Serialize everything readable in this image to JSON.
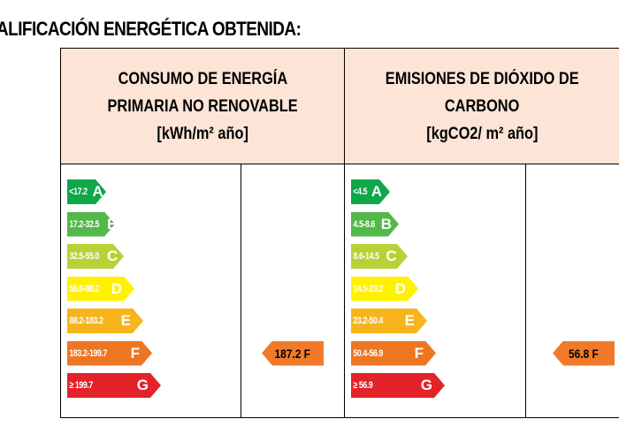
{
  "title": "ALIFICACIÓN ENERGÉTICA OBTENIDA:",
  "columns": [
    {
      "header_line1": "CONSUMO DE ENERGÍA",
      "header_line2": "PRIMARIA NO RENOVABLE",
      "unit": "[kWh/m² año]",
      "bands": [
        {
          "range": "<17.2",
          "letter": "A"
        },
        {
          "range": "17.2-32.5",
          "letter": "B"
        },
        {
          "range": "32.5-55.0",
          "letter": "C"
        },
        {
          "range": "55.0-88.2",
          "letter": "D"
        },
        {
          "range": "88.2-183.2",
          "letter": "E"
        },
        {
          "range": "183.2-199.7",
          "letter": "F"
        },
        {
          "range": "≥ 199.7",
          "letter": "G"
        }
      ],
      "result": {
        "label": "187.2 F",
        "band_index": 5
      }
    },
    {
      "header_line1": "EMISIONES DE DIÓXIDO DE",
      "header_line2": "CARBONO",
      "unit": "[kgCO2/ m² año]",
      "bands": [
        {
          "range": "<4.5",
          "letter": "A"
        },
        {
          "range": "4.5-8.6",
          "letter": "B"
        },
        {
          "range": "8.6-14.5",
          "letter": "C"
        },
        {
          "range": "14.5-23.2",
          "letter": "D"
        },
        {
          "range": "23.2-50.4",
          "letter": "E"
        },
        {
          "range": "50.4-56.9",
          "letter": "F"
        },
        {
          "range": "≥ 56.9",
          "letter": "G"
        }
      ],
      "result": {
        "label": "56.8 F",
        "band_index": 5
      }
    }
  ],
  "colors": {
    "header_bg": "#fce4d6",
    "result_arrow": "#f07a2a",
    "A": "#10a64a",
    "B": "#52b84a",
    "C": "#b7d236",
    "D": "#fff100",
    "E": "#f7b41c",
    "F": "#ee7623",
    "G": "#e42229"
  }
}
